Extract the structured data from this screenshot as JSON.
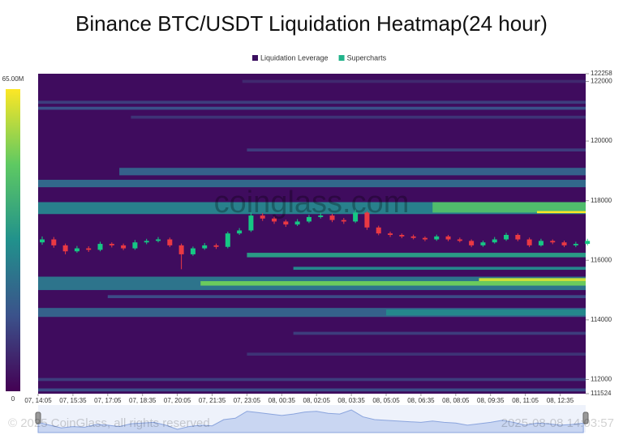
{
  "chart_data": {
    "type": "liquidation-heatmap",
    "title": "Binance BTC/USDT Liquidation Heatmap(24 hour)",
    "legend": [
      {
        "name": "Liquidation Leverage",
        "color": "#3b0f5f"
      },
      {
        "name": "Supercharts",
        "color": "#22b38a"
      }
    ],
    "background": "#3f0c5e",
    "colorscale": [
      "#440154",
      "#3b528b",
      "#21918c",
      "#5ec962",
      "#fde725"
    ],
    "colorbar_lim": [
      0,
      65000000
    ],
    "colorbar_ticks": [
      0,
      {
        "value": 65000000,
        "label": "65.00M"
      }
    ],
    "ylim": [
      111524,
      122258
    ],
    "yticks": [
      111524,
      112000,
      114000,
      116000,
      118000,
      120000,
      122000,
      122258
    ],
    "xlim": [
      0,
      23.6
    ],
    "xticks": [
      {
        "value": 0,
        "label": "07, 14:05"
      },
      {
        "value": 1.5,
        "label": "07, 15:35"
      },
      {
        "value": 3,
        "label": "07, 17:05"
      },
      {
        "value": 4.5,
        "label": "07, 18:35"
      },
      {
        "value": 6,
        "label": "07, 20:05"
      },
      {
        "value": 7.5,
        "label": "07, 21:35"
      },
      {
        "value": 9,
        "label": "07, 23:05"
      },
      {
        "value": 10.5,
        "label": "08, 00:35"
      },
      {
        "value": 12,
        "label": "08, 02:05"
      },
      {
        "value": 13.5,
        "label": "08, 03:35"
      },
      {
        "value": 15,
        "label": "08, 05:05"
      },
      {
        "value": 16.5,
        "label": "08, 06:35"
      },
      {
        "value": 18,
        "label": "08, 08:05"
      },
      {
        "value": 19.5,
        "label": "08, 09:35"
      },
      {
        "value": 21,
        "label": "08, 11:05"
      },
      {
        "value": 22.5,
        "label": "08, 12:35"
      }
    ],
    "bands": [
      {
        "low": 121950,
        "high": 122050,
        "start": 8.8,
        "value": 8000000
      },
      {
        "low": 121250,
        "high": 121350,
        "start": 0,
        "value": 12000000
      },
      {
        "low": 121050,
        "high": 121150,
        "start": 0,
        "value": 16000000
      },
      {
        "low": 120750,
        "high": 120850,
        "start": 4,
        "value": 10000000
      },
      {
        "low": 119650,
        "high": 119750,
        "start": 9,
        "value": 12000000
      },
      {
        "low": 118850,
        "high": 119100,
        "start": 3.5,
        "value": 20000000
      },
      {
        "low": 118450,
        "high": 118700,
        "start": 0,
        "value": 22000000
      },
      {
        "low": 117550,
        "high": 117950,
        "start": 0,
        "value": 28000000
      },
      {
        "low": 117600,
        "high": 117950,
        "start": 17,
        "value": 45000000
      },
      {
        "low": 117580,
        "high": 117650,
        "start": 21.5,
        "value": 65000000
      },
      {
        "low": 116100,
        "high": 116250,
        "start": 9,
        "value": 35000000
      },
      {
        "low": 115680,
        "high": 115780,
        "start": 11,
        "value": 30000000
      },
      {
        "low": 115000,
        "high": 115450,
        "start": 0,
        "value": 25000000
      },
      {
        "low": 115150,
        "high": 115300,
        "start": 7,
        "value": 50000000
      },
      {
        "low": 115300,
        "high": 115400,
        "start": 19,
        "value": 60000000
      },
      {
        "low": 114730,
        "high": 114830,
        "start": 3,
        "value": 15000000
      },
      {
        "low": 114100,
        "high": 114400,
        "start": 0,
        "value": 20000000
      },
      {
        "low": 114150,
        "high": 114350,
        "start": 15,
        "value": 30000000
      },
      {
        "low": 113500,
        "high": 113600,
        "start": 11,
        "value": 12000000
      },
      {
        "low": 112800,
        "high": 112900,
        "start": 9,
        "value": 10000000
      },
      {
        "low": 111950,
        "high": 112050,
        "start": 0,
        "value": 12000000
      },
      {
        "low": 111600,
        "high": 111700,
        "start": 0,
        "value": 15000000
      }
    ],
    "up_color": "#16c784",
    "down_color": "#ea3943",
    "candles": {
      "x": [
        0,
        0.5,
        1,
        1.5,
        2,
        2.5,
        3,
        3.5,
        4,
        4.5,
        5,
        5.5,
        6,
        6.5,
        7,
        7.5,
        8,
        8.5,
        9,
        9.5,
        10,
        10.5,
        11,
        11.5,
        12,
        12.5,
        13,
        13.5,
        14,
        14.5,
        15,
        15.5,
        16,
        16.5,
        17,
        17.5,
        18,
        18.5,
        19,
        19.5,
        20,
        20.5,
        21,
        21.5,
        22,
        22.5,
        23,
        23.5
      ],
      "open": [
        116600,
        116700,
        116500,
        116300,
        116400,
        116350,
        116550,
        116500,
        116400,
        116600,
        116650,
        116700,
        116500,
        116200,
        116400,
        116500,
        116450,
        116900,
        117000,
        117500,
        117400,
        117300,
        117200,
        117300,
        117450,
        117500,
        117350,
        117300,
        117600,
        117100,
        116900,
        116850,
        116800,
        116750,
        116700,
        116800,
        116700,
        116650,
        116500,
        116600,
        116700,
        116850,
        116700,
        116500,
        116650,
        116600,
        116500,
        116550
      ],
      "high": [
        116800,
        116780,
        116560,
        116480,
        116470,
        116620,
        116600,
        116560,
        116680,
        116720,
        116780,
        116760,
        116560,
        116460,
        116580,
        116560,
        116960,
        117080,
        117600,
        117580,
        117460,
        117360,
        117380,
        117520,
        117600,
        117560,
        117420,
        117700,
        117650,
        117160,
        116960,
        116900,
        116860,
        116800,
        116860,
        116850,
        116760,
        116700,
        116660,
        116780,
        116920,
        116900,
        116760,
        116720,
        116700,
        116660,
        116620,
        116720
      ],
      "low": [
        116520,
        116420,
        116200,
        116250,
        116280,
        116300,
        116430,
        116340,
        116350,
        116540,
        116600,
        116440,
        115700,
        116150,
        116350,
        116380,
        116400,
        116850,
        116950,
        117320,
        117220,
        117120,
        117150,
        117250,
        117400,
        117280,
        117220,
        117250,
        117020,
        116840,
        116780,
        116740,
        116700,
        116640,
        116650,
        116640,
        116600,
        116440,
        116450,
        116560,
        116650,
        116640,
        116440,
        116460,
        116540,
        116440,
        116440,
        116500
      ],
      "close": [
        116700,
        116500,
        116300,
        116400,
        116350,
        116550,
        116500,
        116400,
        116600,
        116650,
        116700,
        116500,
        116200,
        116400,
        116500,
        116450,
        116900,
        117000,
        117500,
        117400,
        117300,
        117200,
        117300,
        117450,
        117500,
        117350,
        117300,
        117600,
        117100,
        116900,
        116850,
        116800,
        116750,
        116700,
        116800,
        116700,
        116650,
        116500,
        116600,
        116700,
        116850,
        116700,
        116500,
        116650,
        116600,
        116500,
        116550,
        116650
      ]
    },
    "watermark": "coinglass.com",
    "copyright": "© 2025 CoinGlass, all rights reserved",
    "timestamp": "2025-08-08 14:03:57"
  }
}
